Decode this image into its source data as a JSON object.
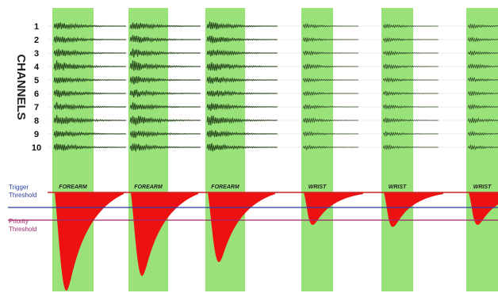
{
  "chart_data": {
    "type": "line",
    "ylabel": "CHANNELS",
    "channels": [
      "1",
      "2",
      "3",
      "4",
      "5",
      "6",
      "7",
      "8",
      "9",
      "10"
    ],
    "segments": [
      {
        "label": "FOREARM",
        "emg_amplitude": 1.0,
        "trigger_depth": 1.0
      },
      {
        "label": "FOREARM",
        "emg_amplitude": 1.0,
        "trigger_depth": 0.85
      },
      {
        "label": "FOREARM",
        "emg_amplitude": 1.0,
        "trigger_depth": 0.71
      },
      {
        "label": "WRIST",
        "emg_amplitude": 0.55,
        "trigger_depth": 0.33
      },
      {
        "label": "WRIST",
        "emg_amplitude": 0.55,
        "trigger_depth": 0.35
      },
      {
        "label": "WRIST",
        "emg_amplitude": 0.55,
        "trigger_depth": 0.33
      }
    ],
    "thresholds": [
      {
        "name": "Trigger Threshold",
        "color": "#2a3fa0"
      },
      {
        "name": "Priority Threshold",
        "color": "#a02a6a"
      }
    ],
    "colors": {
      "segment_band": "#99e27a",
      "emg_trace": "#1f3d14",
      "trigger_fill": "#ee1111",
      "baseline": "#cc2222"
    }
  }
}
